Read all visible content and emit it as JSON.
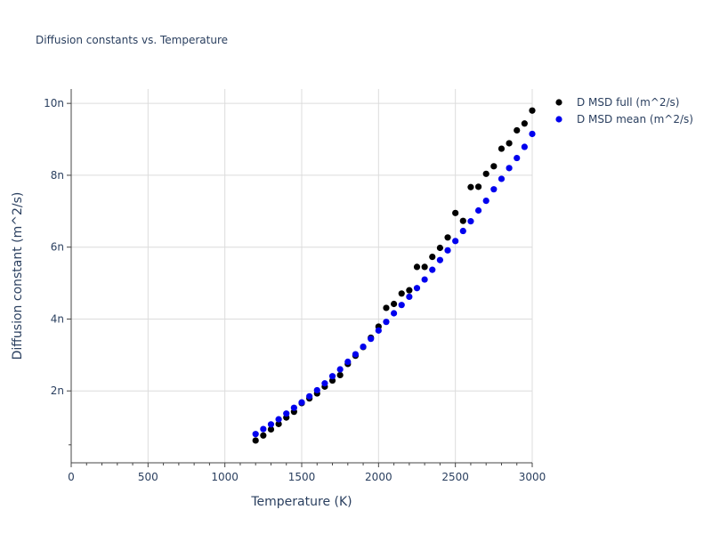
{
  "chart_data": {
    "type": "scatter",
    "title": "Diffusion constants vs. Temperature",
    "xlabel": "Temperature (K)",
    "ylabel": "Diffusion constant (m^2/s)",
    "xlim": [
      0,
      3000
    ],
    "ylim": [
      0,
      10.4
    ],
    "x_ticks": [
      0,
      500,
      1000,
      1500,
      2000,
      2500,
      3000
    ],
    "x_tick_labels": [
      "0",
      "500",
      "1000",
      "1500",
      "2000",
      "2500",
      "3000"
    ],
    "y_ticks": [
      2,
      4,
      6,
      8,
      10
    ],
    "y_tick_labels": [
      "2n",
      "4n",
      "6n",
      "8n",
      "10n"
    ],
    "grid": true,
    "legend_position": "top-right",
    "series": [
      {
        "name": "D MSD full (m^2/s)",
        "color": "#000000",
        "x": [
          1200,
          1250,
          1300,
          1350,
          1400,
          1450,
          1500,
          1550,
          1600,
          1650,
          1700,
          1750,
          1800,
          1850,
          1900,
          1950,
          2000,
          2050,
          2100,
          2150,
          2200,
          2250,
          2300,
          2350,
          2400,
          2450,
          2500,
          2550,
          2600,
          2650,
          2700,
          2750,
          2800,
          2850,
          2900,
          2950,
          3000
        ],
        "y": [
          0.62,
          0.76,
          0.93,
          1.08,
          1.26,
          1.42,
          1.66,
          1.79,
          1.93,
          2.12,
          2.29,
          2.44,
          2.75,
          2.98,
          3.22,
          3.48,
          3.79,
          4.31,
          4.42,
          4.71,
          4.8,
          5.45,
          5.45,
          5.73,
          5.98,
          6.27,
          6.95,
          6.73,
          7.67,
          7.68,
          8.04,
          8.25,
          8.74,
          8.89,
          9.25,
          9.44,
          9.8
        ]
      },
      {
        "name": "D MSD mean (m^2/s)",
        "color": "#0000ee",
        "x": [
          1200,
          1250,
          1300,
          1350,
          1400,
          1450,
          1500,
          1550,
          1600,
          1650,
          1700,
          1750,
          1800,
          1850,
          1900,
          1950,
          2000,
          2050,
          2100,
          2150,
          2200,
          2250,
          2300,
          2350,
          2400,
          2450,
          2500,
          2550,
          2600,
          2650,
          2700,
          2750,
          2800,
          2850,
          2900,
          2950,
          3000
        ],
        "y": [
          0.8,
          0.94,
          1.07,
          1.21,
          1.37,
          1.53,
          1.68,
          1.85,
          2.02,
          2.21,
          2.41,
          2.6,
          2.81,
          3.02,
          3.23,
          3.45,
          3.68,
          3.92,
          4.16,
          4.39,
          4.62,
          4.86,
          5.1,
          5.37,
          5.64,
          5.91,
          6.17,
          6.45,
          6.72,
          7.02,
          7.29,
          7.61,
          7.9,
          8.2,
          8.48,
          8.79,
          9.15
        ]
      }
    ]
  }
}
